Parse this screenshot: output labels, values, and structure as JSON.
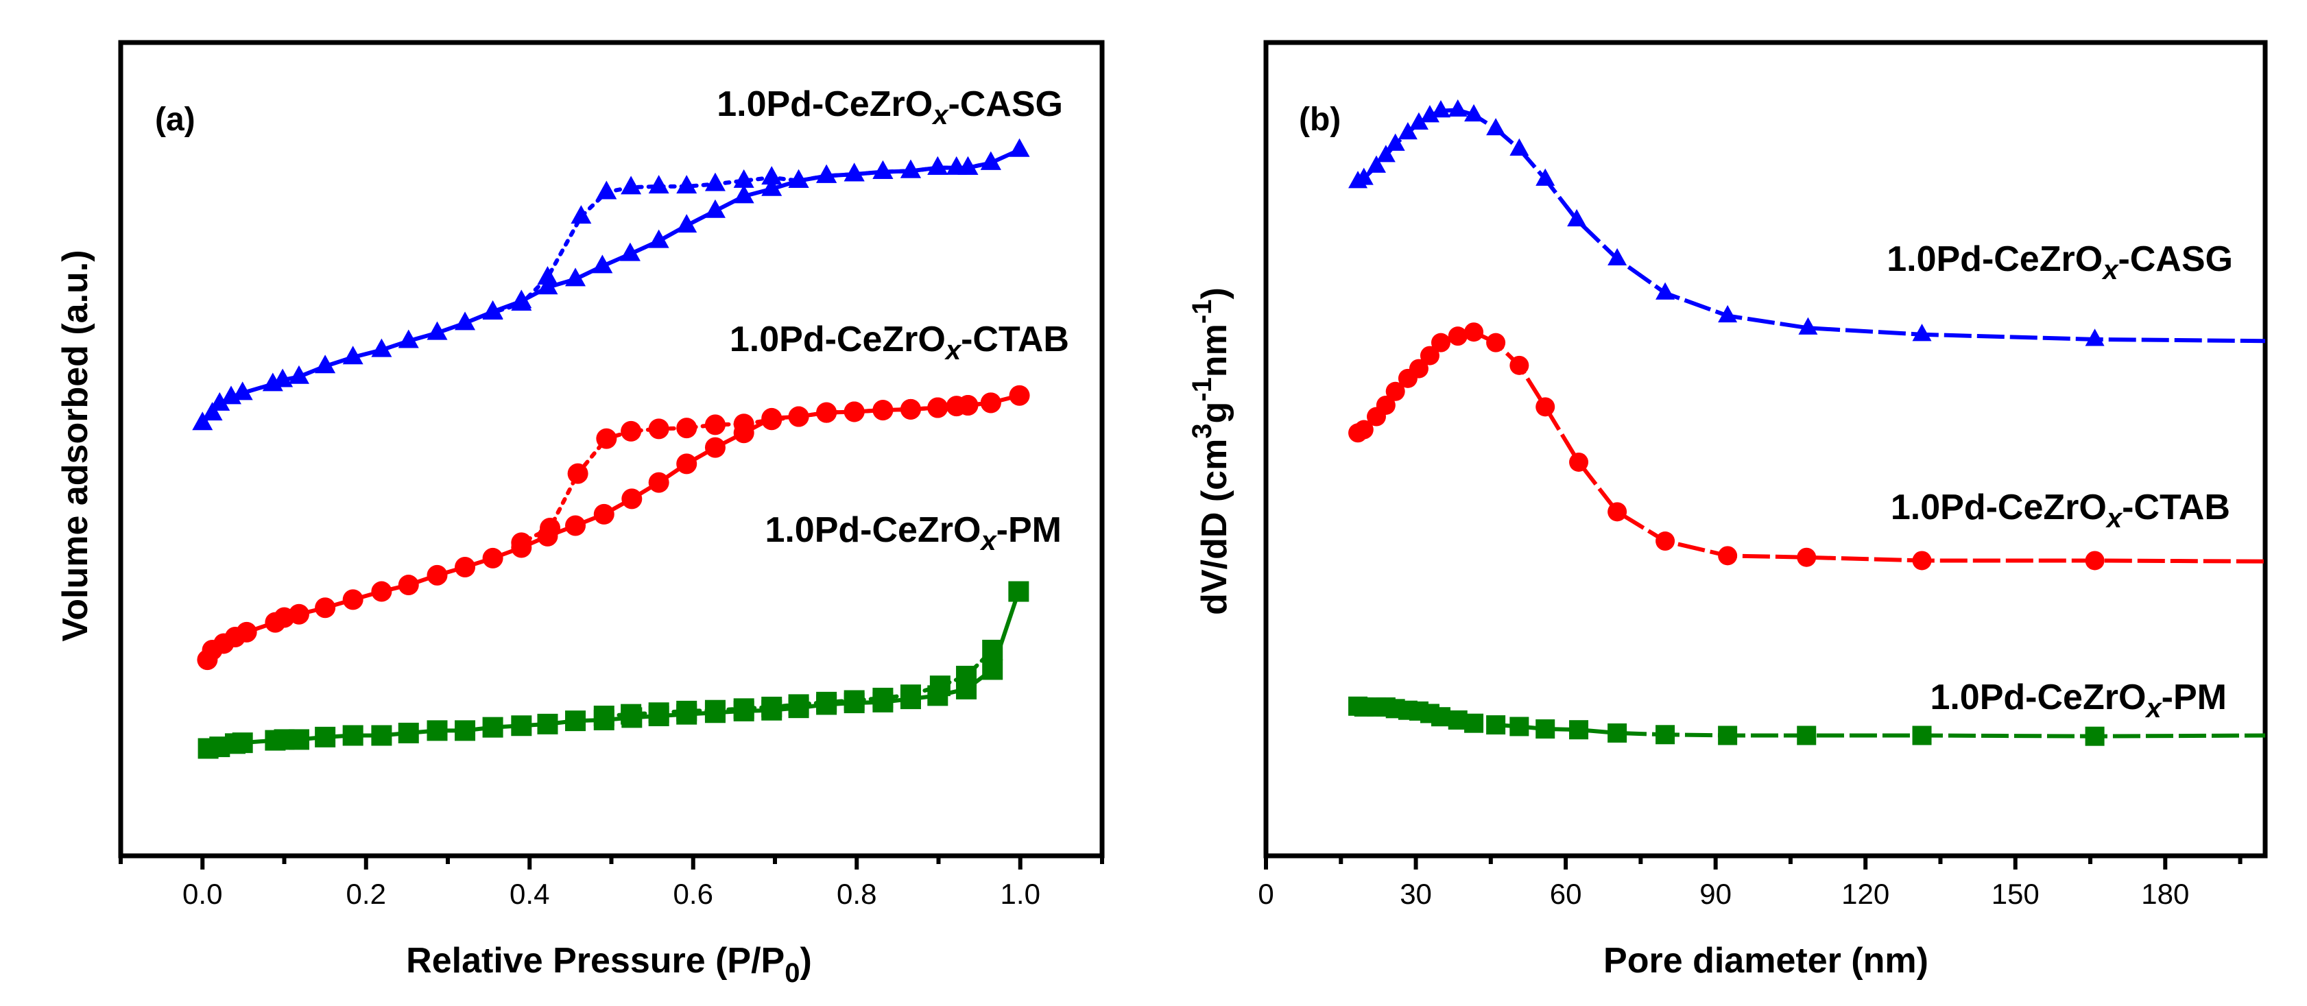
{
  "chart_data": [
    {
      "type": "scatter",
      "panel_label": "(a)",
      "xlabel": "Relative Pressure (P/P",
      "xlabel_sub": "0",
      "xlabel_end": ")",
      "ylabel": "Volume adsorbed (a.u.)",
      "xlim": [
        -0.1,
        1.1
      ],
      "ylim": [
        0,
        100
      ],
      "xticks": [
        "0.0",
        "0.2",
        "0.4",
        "0.6",
        "0.8",
        "1.0"
      ],
      "xtick_values": [
        0,
        0.2,
        0.4,
        0.6,
        0.8,
        1.0
      ],
      "grid": false,
      "series": [
        {
          "name": "1.0Pd-CeZrOx-CASG",
          "label_pre": "1.0Pd-CeZrO",
          "label_sub": "x",
          "label_post": "-CASG",
          "color": "#0000ff",
          "marker": "triangle",
          "adsorption": {
            "x": [
              0.0,
              0.012,
              0.021,
              0.035,
              0.049,
              0.086,
              0.098,
              0.118,
              0.15,
              0.184,
              0.219,
              0.252,
              0.287,
              0.321,
              0.355,
              0.39,
              0.422,
              0.456,
              0.489,
              0.523,
              0.558,
              0.592,
              0.627,
              0.662,
              0.696,
              0.729,
              0.763,
              0.797,
              0.832,
              0.866,
              0.899,
              0.922,
              0.936,
              0.964,
              0.999
            ],
            "y": [
              53.2,
              54.4,
              55.6,
              56.4,
              56.9,
              58.0,
              58.5,
              58.9,
              60.2,
              61.3,
              62.2,
              63.3,
              64.3,
              65.5,
              66.9,
              68.2,
              69.9,
              70.9,
              72.5,
              74.0,
              75.6,
              77.5,
              79.3,
              81.1,
              82.0,
              83.0,
              83.6,
              83.8,
              84.1,
              84.2,
              84.6,
              84.6,
              84.6,
              85.2,
              86.8
            ]
          },
          "desorption": {
            "x": [
              0.964,
              0.936,
              0.899,
              0.866,
              0.832,
              0.797,
              0.763,
              0.729,
              0.696,
              0.662,
              0.627,
              0.592,
              0.558,
              0.524,
              0.494,
              0.463,
              0.422,
              0.39,
              0.355
            ],
            "y": [
              85.2,
              84.6,
              84.6,
              84.2,
              84.1,
              83.8,
              83.6,
              83.0,
              83.4,
              83.0,
              82.6,
              82.3,
              82.3,
              82.2,
              81.6,
              78.6,
              71.1,
              67.9,
              66.8
            ]
          }
        },
        {
          "name": "1.0Pd-CeZrOx-CTAB",
          "label_pre": "1.0Pd-CeZrO",
          "label_sub": "x",
          "label_post": "-CTAB",
          "color": "#ff0000",
          "marker": "circle",
          "adsorption": {
            "x": [
              0.006,
              0.012,
              0.026,
              0.04,
              0.054,
              0.089,
              0.1,
              0.118,
              0.15,
              0.184,
              0.219,
              0.252,
              0.287,
              0.321,
              0.355,
              0.39,
              0.422,
              0.456,
              0.491,
              0.525,
              0.558,
              0.592,
              0.627,
              0.662,
              0.696,
              0.729,
              0.763,
              0.797,
              0.832,
              0.866,
              0.899,
              0.922,
              0.936,
              0.964,
              0.999
            ],
            "y": [
              24.1,
              25.3,
              26.1,
              26.9,
              27.5,
              28.7,
              29.3,
              29.7,
              30.5,
              31.5,
              32.5,
              33.3,
              34.5,
              35.5,
              36.6,
              37.9,
              39.3,
              40.6,
              42.0,
              43.9,
              45.9,
              48.2,
              50.2,
              52.0,
              53.8,
              54.0,
              54.5,
              54.6,
              54.8,
              54.9,
              55.1,
              55.3,
              55.4,
              55.7,
              56.6
            ]
          },
          "desorption": {
            "x": [
              0.964,
              0.936,
              0.899,
              0.866,
              0.832,
              0.797,
              0.763,
              0.729,
              0.696,
              0.662,
              0.627,
              0.592,
              0.558,
              0.524,
              0.494,
              0.459,
              0.425,
              0.39
            ],
            "y": [
              55.7,
              55.4,
              55.1,
              54.9,
              54.8,
              54.6,
              54.5,
              54.0,
              53.6,
              53.1,
              53.0,
              52.6,
              52.5,
              52.2,
              51.3,
              47.0,
              40.3,
              38.5
            ]
          }
        },
        {
          "name": "1.0Pd-CeZrOx-PM",
          "label_pre": "1.0Pd-CeZrO",
          "label_sub": "x",
          "label_post": "-PM",
          "color": "#008000",
          "marker": "square",
          "adsorption": {
            "x": [
              0.007,
              0.021,
              0.04,
              0.049,
              0.089,
              0.1,
              0.118,
              0.15,
              0.184,
              0.219,
              0.252,
              0.287,
              0.321,
              0.355,
              0.39,
              0.422,
              0.456,
              0.491,
              0.525,
              0.558,
              0.592,
              0.627,
              0.662,
              0.696,
              0.729,
              0.763,
              0.797,
              0.832,
              0.866,
              0.899,
              0.934,
              0.966,
              0.998
            ],
            "y": [
              13.2,
              13.4,
              13.8,
              13.9,
              14.2,
              14.3,
              14.3,
              14.6,
              14.8,
              14.8,
              15.1,
              15.4,
              15.4,
              15.8,
              16.0,
              16.2,
              16.6,
              16.7,
              17.0,
              17.2,
              17.4,
              17.6,
              17.8,
              17.9,
              18.2,
              18.6,
              18.8,
              18.9,
              19.3,
              19.7,
              20.5,
              22.9,
              32.5
            ]
          },
          "desorption": {
            "x": [
              0.966,
              0.934,
              0.902,
              0.866,
              0.832,
              0.797,
              0.763,
              0.729,
              0.696,
              0.662,
              0.627,
              0.592,
              0.558,
              0.524,
              0.491
            ],
            "y": [
              25.3,
              22.1,
              20.9,
              19.8,
              19.4,
              19.1,
              18.9,
              18.6,
              18.3,
              18.1,
              17.9,
              17.8,
              17.6,
              17.4,
              17.2
            ]
          }
        }
      ]
    },
    {
      "type": "line",
      "panel_label": "(b)",
      "xlabel": "Pore diameter (nm)",
      "ylabel_pre": "dV/dD (cm",
      "ylabel_sup1": "3",
      "ylabel_mid": "g",
      "ylabel_sup2": "-1",
      "ylabel_mid2": "nm",
      "ylabel_sup3": "-1",
      "ylabel_end": ")",
      "xlim": [
        0,
        200
      ],
      "ylim": [
        0,
        100
      ],
      "xticks": [
        "0",
        "30",
        "60",
        "90",
        "120",
        "150",
        "180"
      ],
      "xtick_values": [
        0,
        30,
        60,
        90,
        120,
        150,
        180
      ],
      "grid": false,
      "series": [
        {
          "name": "1.0Pd-CeZrOx-CASG",
          "label_pre": "1.0Pd-CeZrO",
          "label_sub": "x",
          "label_post": "-CASG",
          "color": "#0000ff",
          "marker": "triangle",
          "x": [
            18.4,
            19.6,
            22.1,
            24.0,
            25.9,
            28.4,
            30.6,
            32.8,
            35.0,
            38.4,
            41.6,
            46.0,
            50.7,
            55.9,
            62.2,
            70.3,
            79.9,
            92.4,
            108.5,
            131.3,
            165.9
          ],
          "y": [
            82.9,
            83.3,
            84.8,
            86.1,
            87.5,
            88.9,
            90.1,
            91.0,
            91.6,
            91.7,
            91.1,
            89.4,
            86.9,
            83.2,
            78.2,
            73.4,
            69.2,
            66.4,
            64.9,
            64.1,
            63.5
          ],
          "line_end": [
            200,
            63.3
          ]
        },
        {
          "name": "1.0Pd-CeZrOx-CTAB",
          "label_pre": "1.0Pd-CeZrO",
          "label_sub": "x",
          "label_post": "-CTAB",
          "color": "#ff0000",
          "marker": "circle",
          "x": [
            18.4,
            19.6,
            22.1,
            24.0,
            25.9,
            28.4,
            30.6,
            32.8,
            35.0,
            38.4,
            41.6,
            46.0,
            50.7,
            55.9,
            62.6,
            70.3,
            79.9,
            92.4,
            108.2,
            131.3,
            165.9
          ],
          "y": [
            52.0,
            52.4,
            54.0,
            55.4,
            57.1,
            58.7,
            59.9,
            61.5,
            63.1,
            63.9,
            64.4,
            63.1,
            60.3,
            55.2,
            48.4,
            42.3,
            38.7,
            36.9,
            36.7,
            36.3,
            36.3
          ],
          "line_end": [
            200,
            36.2
          ]
        },
        {
          "name": "1.0Pd-CeZrOx-PM",
          "label_pre": "1.0Pd-CeZrO",
          "label_sub": "x",
          "label_post": "-PM",
          "color": "#008000",
          "marker": "square",
          "x": [
            18.4,
            19.6,
            22.1,
            24.0,
            25.9,
            28.4,
            30.6,
            32.8,
            35.0,
            38.4,
            41.6,
            46.0,
            50.7,
            55.9,
            62.6,
            70.3,
            79.9,
            92.4,
            108.2,
            131.3,
            165.9
          ],
          "y": [
            18.4,
            18.3,
            18.3,
            18.3,
            18.1,
            17.9,
            17.8,
            17.5,
            17.1,
            16.7,
            16.3,
            16.1,
            15.9,
            15.6,
            15.5,
            15.1,
            14.9,
            14.8,
            14.8,
            14.8,
            14.7
          ],
          "line_end": [
            200,
            14.8
          ]
        }
      ]
    }
  ]
}
